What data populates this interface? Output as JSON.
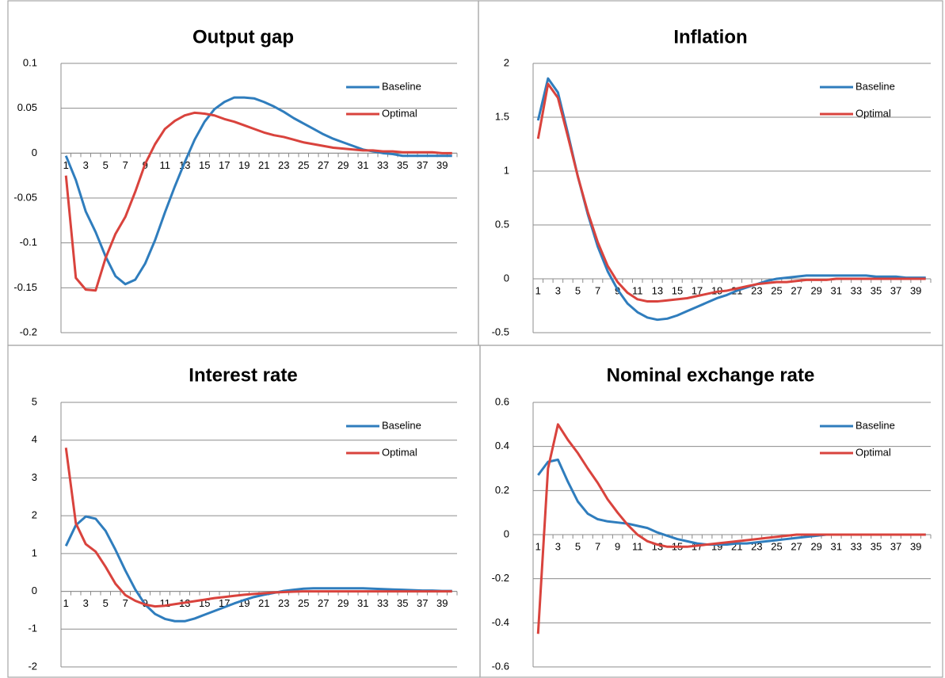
{
  "chart_data": [
    {
      "type": "line",
      "title": "Output gap",
      "legend": "upper right",
      "grid": true,
      "categories": [
        "1",
        null,
        "3",
        null,
        "5",
        null,
        "7",
        null,
        "9",
        null,
        "11",
        null,
        "13",
        null,
        "15",
        null,
        "17",
        null,
        "19",
        null,
        "21",
        null,
        "23",
        null,
        "25",
        null,
        "27",
        null,
        "29",
        null,
        "31",
        null,
        "33",
        null,
        "35",
        null,
        "37",
        null,
        "39",
        null
      ],
      "ylim": [
        -0.2,
        0.1
      ],
      "yticks": [
        -0.2,
        -0.15,
        -0.1,
        -0.05,
        0,
        0.05,
        0.1
      ],
      "series": [
        {
          "name": "Baseline",
          "color": "#2f7dbd",
          "values": [
            -0.003,
            -0.03,
            -0.065,
            -0.088,
            -0.115,
            -0.137,
            -0.146,
            -0.141,
            -0.123,
            -0.097,
            -0.066,
            -0.037,
            -0.01,
            0.015,
            0.035,
            0.049,
            0.057,
            0.062,
            0.062,
            0.061,
            0.057,
            0.052,
            0.046,
            0.039,
            0.033,
            0.027,
            0.021,
            0.016,
            0.012,
            0.008,
            0.004,
            0.002,
            0,
            -0.001,
            -0.003,
            -0.003,
            -0.003,
            -0.003,
            -0.003,
            -0.003
          ]
        },
        {
          "name": "Optimal",
          "color": "#d9433d",
          "values": [
            -0.025,
            -0.139,
            -0.152,
            -0.153,
            -0.117,
            -0.09,
            -0.071,
            -0.043,
            -0.012,
            0.01,
            0.027,
            0.036,
            0.042,
            0.045,
            0.044,
            0.042,
            0.038,
            0.035,
            0.031,
            0.027,
            0.023,
            0.02,
            0.018,
            0.015,
            0.012,
            0.01,
            0.008,
            0.006,
            0.005,
            0.004,
            0.003,
            0.003,
            0.002,
            0.002,
            0.001,
            0.001,
            0.001,
            0.001,
            0,
            0
          ]
        }
      ]
    },
    {
      "type": "line",
      "title": "Inflation",
      "legend": "upper right",
      "grid": true,
      "categories": [
        "1",
        null,
        "3",
        null,
        "5",
        null,
        "7",
        null,
        "9",
        null,
        "11",
        null,
        "13",
        null,
        "15",
        null,
        "17",
        null,
        "19",
        null,
        "21",
        null,
        "23",
        null,
        "25",
        null,
        "27",
        null,
        "29",
        null,
        "31",
        null,
        "33",
        null,
        "35",
        null,
        "37",
        null,
        "39",
        null
      ],
      "ylim": [
        -0.5,
        2
      ],
      "yticks": [
        -0.5,
        0,
        0.5,
        1,
        1.5,
        2
      ],
      "series": [
        {
          "name": "Baseline",
          "color": "#2f7dbd",
          "values": [
            1.47,
            1.86,
            1.73,
            1.35,
            0.95,
            0.6,
            0.3,
            0.07,
            -0.1,
            -0.23,
            -0.31,
            -0.36,
            -0.38,
            -0.37,
            -0.34,
            -0.3,
            -0.26,
            -0.22,
            -0.18,
            -0.15,
            -0.11,
            -0.08,
            -0.05,
            -0.02,
            0,
            0.01,
            0.02,
            0.03,
            0.03,
            0.03,
            0.03,
            0.03,
            0.03,
            0.03,
            0.02,
            0.02,
            0.02,
            0.01,
            0.01,
            0.01
          ]
        },
        {
          "name": "Optimal",
          "color": "#d9433d",
          "values": [
            1.3,
            1.81,
            1.68,
            1.32,
            0.95,
            0.62,
            0.34,
            0.12,
            -0.03,
            -0.13,
            -0.19,
            -0.21,
            -0.21,
            -0.2,
            -0.19,
            -0.18,
            -0.16,
            -0.14,
            -0.12,
            -0.11,
            -0.09,
            -0.07,
            -0.05,
            -0.04,
            -0.03,
            -0.03,
            -0.02,
            -0.01,
            -0.01,
            -0.01,
            0,
            0,
            0,
            0,
            0,
            0,
            0,
            0,
            0,
            0
          ]
        }
      ]
    },
    {
      "type": "line",
      "title": "Interest rate",
      "legend": "upper right",
      "grid": true,
      "categories": [
        "1",
        null,
        "3",
        null,
        "5",
        null,
        "7",
        null,
        "9",
        null,
        "11",
        null,
        "13",
        null,
        "15",
        null,
        "17",
        null,
        "19",
        null,
        "21",
        null,
        "23",
        null,
        "25",
        null,
        "27",
        null,
        "29",
        null,
        "31",
        null,
        "33",
        null,
        "35",
        null,
        "37",
        null,
        "39",
        null
      ],
      "ylim": [
        -2,
        5
      ],
      "yticks": [
        -2,
        -1,
        0,
        1,
        2,
        3,
        4,
        5
      ],
      "series": [
        {
          "name": "Baseline",
          "color": "#2f7dbd",
          "values": [
            1.2,
            1.75,
            1.98,
            1.92,
            1.6,
            1.1,
            0.55,
            0.05,
            -0.35,
            -0.6,
            -0.73,
            -0.79,
            -0.79,
            -0.72,
            -0.62,
            -0.52,
            -0.42,
            -0.32,
            -0.23,
            -0.15,
            -0.09,
            -0.04,
            0.01,
            0.04,
            0.07,
            0.08,
            0.08,
            0.08,
            0.08,
            0.08,
            0.08,
            0.07,
            0.06,
            0.05,
            0.04,
            0.03,
            0.02,
            0.02,
            0.01,
            0.01
          ]
        },
        {
          "name": "Optimal",
          "color": "#d9433d",
          "values": [
            3.8,
            1.8,
            1.25,
            1.05,
            0.65,
            0.2,
            -0.1,
            -0.25,
            -0.35,
            -0.4,
            -0.38,
            -0.34,
            -0.3,
            -0.26,
            -0.22,
            -0.18,
            -0.15,
            -0.12,
            -0.09,
            -0.07,
            -0.05,
            -0.03,
            -0.02,
            -0.01,
            0,
            0,
            0,
            0,
            0,
            0,
            0,
            0,
            0,
            0,
            0,
            0,
            0,
            0,
            0,
            0
          ]
        }
      ]
    },
    {
      "type": "line",
      "title": "Nominal exchange rate",
      "legend": "upper right",
      "grid": true,
      "categories": [
        "1",
        null,
        "3",
        null,
        "5",
        null,
        "7",
        null,
        "9",
        null,
        "11",
        null,
        "13",
        null,
        "15",
        null,
        "17",
        null,
        "19",
        null,
        "21",
        null,
        "23",
        null,
        "25",
        null,
        "27",
        null,
        "29",
        null,
        "31",
        null,
        "33",
        null,
        "35",
        null,
        "37",
        null,
        "39",
        null
      ],
      "ylim": [
        -0.6,
        0.6
      ],
      "yticks": [
        -0.6,
        -0.4,
        -0.2,
        0,
        0.2,
        0.4,
        0.6
      ],
      "series": [
        {
          "name": "Baseline",
          "color": "#2f7dbd",
          "values": [
            0.27,
            0.33,
            0.34,
            0.24,
            0.15,
            0.095,
            0.07,
            0.06,
            0.055,
            0.05,
            0.04,
            0.03,
            0.01,
            -0.005,
            -0.02,
            -0.03,
            -0.04,
            -0.045,
            -0.045,
            -0.045,
            -0.04,
            -0.04,
            -0.035,
            -0.03,
            -0.025,
            -0.02,
            -0.015,
            -0.01,
            -0.005,
            0,
            0,
            0,
            0,
            0,
            0,
            0,
            0,
            0,
            0,
            0
          ]
        },
        {
          "name": "Optimal",
          "color": "#d9433d",
          "values": [
            -0.45,
            0.3,
            0.5,
            0.43,
            0.37,
            0.3,
            0.235,
            0.16,
            0.1,
            0.045,
            0,
            -0.03,
            -0.045,
            -0.055,
            -0.055,
            -0.055,
            -0.05,
            -0.045,
            -0.04,
            -0.035,
            -0.03,
            -0.025,
            -0.02,
            -0.015,
            -0.01,
            -0.005,
            0,
            0,
            0,
            0,
            0,
            0,
            0,
            0,
            0,
            0,
            0,
            0,
            0,
            0
          ]
        }
      ]
    }
  ]
}
